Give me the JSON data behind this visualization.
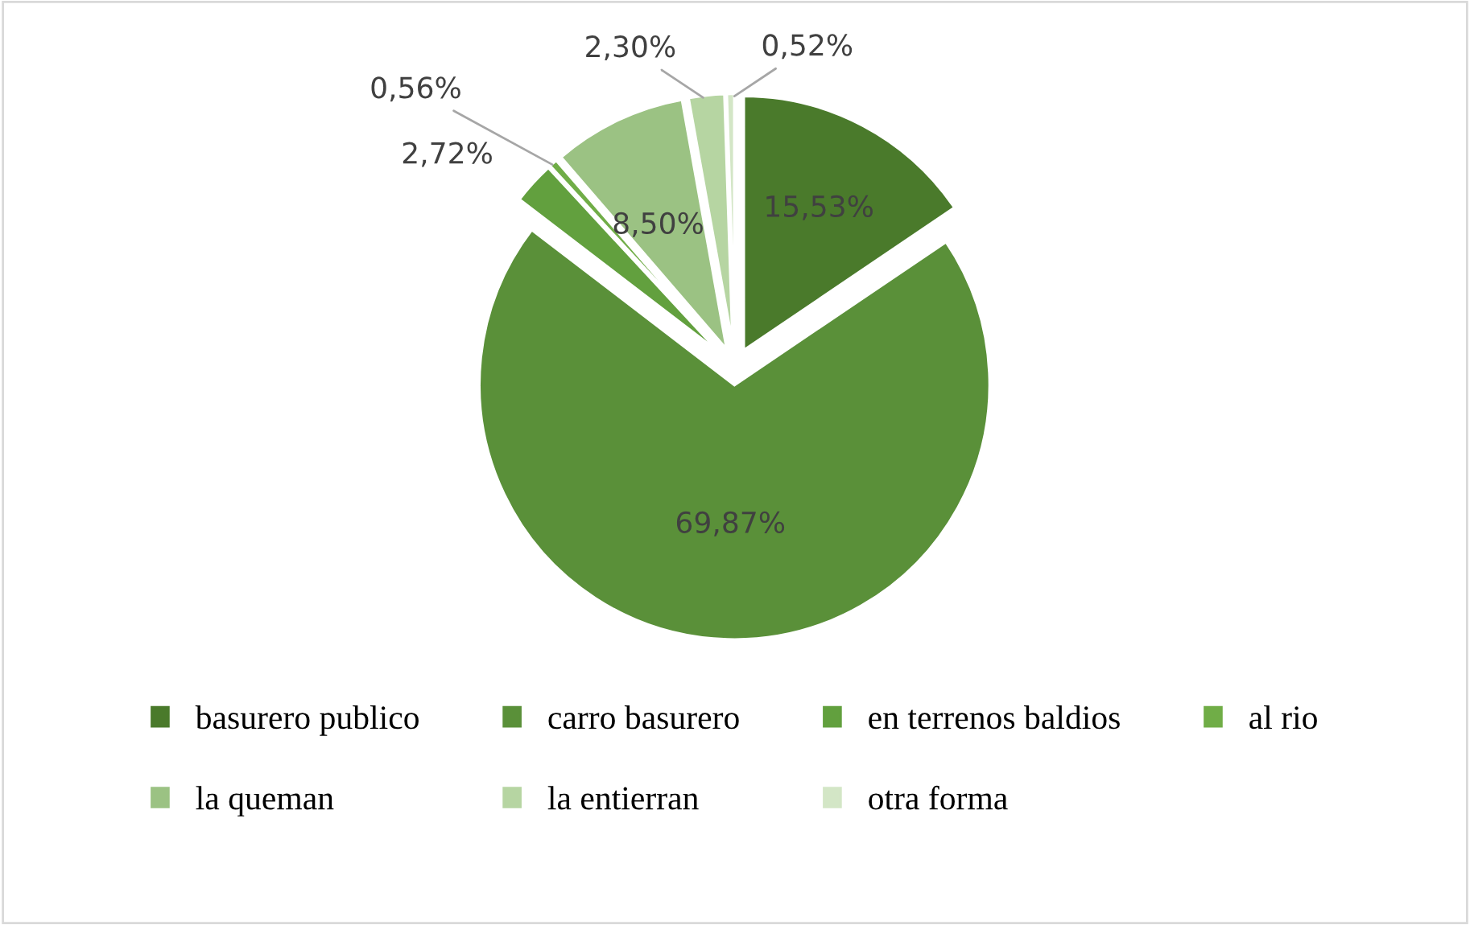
{
  "chart_data": {
    "type": "pie",
    "categories": [
      "basurero publico",
      "carro basurero",
      "en terrenos baldios",
      "al rio",
      "la queman",
      "la entierran",
      "otra forma"
    ],
    "values": [
      15.53,
      69.87,
      2.72,
      0.56,
      8.5,
      2.3,
      0.52
    ],
    "value_labels": [
      "15,53%",
      "69,87%",
      "2,72%",
      "0,56%",
      "8,50%",
      "2,30%",
      "0,52%"
    ],
    "colors": [
      "#4a7a2b",
      "#5a9039",
      "#62a03e",
      "#70ad47",
      "#9bc283",
      "#b6d5a2",
      "#d3e6c6"
    ],
    "legend": "bottom"
  }
}
